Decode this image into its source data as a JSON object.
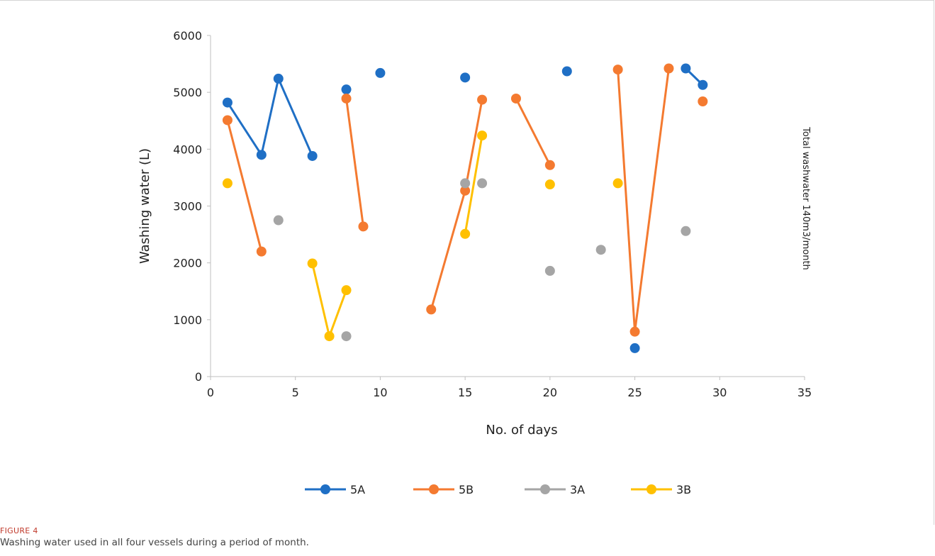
{
  "figure": {
    "label": "FIGURE 4",
    "caption": "Washing water used in all four vessels during a period of month."
  },
  "chart_data": {
    "type": "line",
    "title": "",
    "xlabel": "No. of days",
    "ylabel": "Washing water (L)",
    "side_annotation": "Total washwater 140m3/month",
    "xlim": [
      0,
      35
    ],
    "ylim": [
      0,
      6000
    ],
    "x_ticks": [
      0,
      5,
      10,
      15,
      20,
      25,
      30,
      35
    ],
    "y_ticks": [
      0,
      1000,
      2000,
      3000,
      4000,
      5000,
      6000
    ],
    "grid": false,
    "legend_position": "bottom",
    "series": [
      {
        "name": "5A",
        "color": "#1f6fc5",
        "points": [
          [
            1,
            4820
          ],
          [
            3,
            3900
          ],
          [
            4,
            5240
          ],
          [
            6,
            3880
          ],
          [
            8,
            5050
          ],
          [
            10,
            5340
          ],
          [
            15,
            5260
          ],
          [
            21,
            5370
          ],
          [
            25,
            500
          ],
          [
            28,
            5420
          ],
          [
            29,
            5130
          ]
        ],
        "segments": [
          [
            [
              1,
              4820
            ],
            [
              3,
              3900
            ],
            [
              4,
              5240
            ],
            [
              6,
              3880
            ]
          ],
          [
            [
              28,
              5420
            ],
            [
              29,
              5130
            ]
          ]
        ]
      },
      {
        "name": "5B",
        "color": "#f47a30",
        "points": [
          [
            1,
            4510
          ],
          [
            3,
            2200
          ],
          [
            8,
            4890
          ],
          [
            9,
            2640
          ],
          [
            13,
            1180
          ],
          [
            15,
            3270
          ],
          [
            16,
            4870
          ],
          [
            18,
            4890
          ],
          [
            20,
            3720
          ],
          [
            24,
            5400
          ],
          [
            25,
            790
          ],
          [
            27,
            5420
          ],
          [
            29,
            4840
          ]
        ],
        "segments": [
          [
            [
              1,
              4510
            ],
            [
              3,
              2200
            ]
          ],
          [
            [
              8,
              4890
            ],
            [
              9,
              2640
            ]
          ],
          [
            [
              13,
              1180
            ],
            [
              15,
              3270
            ],
            [
              16,
              4870
            ]
          ],
          [
            [
              18,
              4890
            ],
            [
              20,
              3720
            ]
          ],
          [
            [
              24,
              5400
            ],
            [
              25,
              790
            ],
            [
              27,
              5420
            ]
          ]
        ]
      },
      {
        "name": "3A",
        "color": "#a5a5a5",
        "points": [
          [
            4,
            2750
          ],
          [
            8,
            710
          ],
          [
            15,
            3400
          ],
          [
            16,
            3400
          ],
          [
            20,
            1860
          ],
          [
            23,
            2230
          ],
          [
            28,
            2560
          ]
        ],
        "segments": []
      },
      {
        "name": "3B",
        "color": "#ffc000",
        "points": [
          [
            1,
            3400
          ],
          [
            6,
            1990
          ],
          [
            7,
            710
          ],
          [
            8,
            1520
          ],
          [
            15,
            2510
          ],
          [
            16,
            4240
          ],
          [
            20,
            3380
          ],
          [
            24,
            3400
          ]
        ],
        "segments": [
          [
            [
              6,
              1990
            ],
            [
              7,
              710
            ],
            [
              8,
              1520
            ]
          ],
          [
            [
              15,
              2510
            ],
            [
              16,
              4240
            ]
          ]
        ]
      }
    ]
  }
}
